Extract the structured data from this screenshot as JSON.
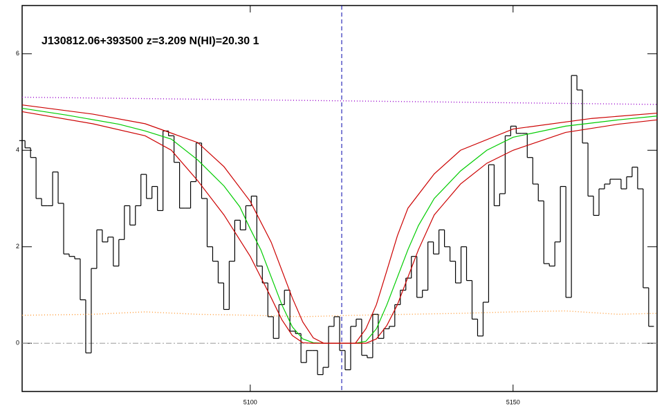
{
  "chart_data": {
    "type": "line",
    "title": "J130812.06+393500 z=3.209 N(HI)=20.30 1",
    "xlim": [
      5056.6,
      5177.4
    ],
    "ylim": [
      -1.0,
      7.0
    ],
    "xticks": [
      5100,
      5150
    ],
    "yticks": [
      0,
      2,
      4,
      6
    ],
    "hline": 0,
    "vline": 5117.4,
    "series": [
      {
        "style": "step",
        "color": "#000000",
        "x": [
          5056.6,
          5057.7,
          5058.7,
          5059.8,
          5060.8,
          5061.9,
          5062.9,
          5064.0,
          5065.0,
          5066.1,
          5067.1,
          5068.2,
          5069.2,
          5070.3,
          5071.3,
          5072.4,
          5073.4,
          5074.5,
          5075.5,
          5076.6,
          5077.6,
          5078.7,
          5079.7,
          5080.8,
          5081.8,
          5082.9,
          5083.9,
          5085.0,
          5086.0,
          5087.1,
          5088.1,
          5089.2,
          5090.2,
          5091.3,
          5092.3,
          5093.4,
          5094.4,
          5095.5,
          5096.5,
          5097.6,
          5098.6,
          5099.7,
          5100.7,
          5101.8,
          5102.8,
          5103.9,
          5104.9,
          5106.0,
          5107.0,
          5108.1,
          5109.1,
          5110.2,
          5111.2,
          5112.3,
          5113.3,
          5114.4,
          5115.4,
          5116.5,
          5117.5,
          5118.6,
          5119.6,
          5120.7,
          5121.7,
          5122.8,
          5123.8,
          5124.9,
          5125.9,
          5127.0,
          5128.0,
          5129.1,
          5130.1,
          5131.2,
          5132.2,
          5133.3,
          5134.3,
          5135.4,
          5136.4,
          5137.5,
          5138.5,
          5139.6,
          5140.6,
          5141.7,
          5142.7,
          5143.8,
          5144.8,
          5145.9,
          5146.9,
          5148.0,
          5149.0,
          5150.1,
          5151.1,
          5152.2,
          5153.2,
          5154.3,
          5155.3,
          5156.4,
          5157.4,
          5158.5,
          5159.5,
          5160.6,
          5161.6,
          5162.7,
          5163.7,
          5164.8,
          5165.8,
          5166.9,
          5167.9,
          5169.0,
          5170.0,
          5171.1,
          5172.1,
          5173.2,
          5174.2,
          5175.3,
          5176.3
        ],
        "values": [
          4.2,
          4.05,
          3.85,
          3.0,
          2.85,
          2.85,
          3.55,
          2.9,
          1.85,
          1.8,
          1.75,
          0.9,
          -0.2,
          1.55,
          2.35,
          2.1,
          2.2,
          1.6,
          2.15,
          2.85,
          2.45,
          2.85,
          3.5,
          3.0,
          3.25,
          2.75,
          4.4,
          4.3,
          3.75,
          2.8,
          2.8,
          3.35,
          4.15,
          3.0,
          2.0,
          1.7,
          1.25,
          0.7,
          1.7,
          2.55,
          2.35,
          2.85,
          3.05,
          1.6,
          1.25,
          0.55,
          0.1,
          0.8,
          1.1,
          0.25,
          0.2,
          -0.4,
          -0.15,
          -0.15,
          -0.65,
          -0.5,
          0.35,
          0.55,
          -0.15,
          -0.55,
          0.35,
          0.5,
          -0.25,
          -0.3,
          0.6,
          0.1,
          0.3,
          0.35,
          0.8,
          1.1,
          1.35,
          1.8,
          0.95,
          1.1,
          2.1,
          1.85,
          2.35,
          2.0,
          1.7,
          1.25,
          2.0,
          1.3,
          0.5,
          0.15,
          0.85,
          3.7,
          2.85,
          3.1,
          4.3,
          4.5,
          4.35,
          4.35,
          3.85,
          3.3,
          2.95,
          1.65,
          1.6,
          2.1,
          3.25,
          0.95,
          5.55,
          5.25,
          4.15,
          3.05,
          2.65,
          3.2,
          3.3,
          3.4,
          3.4,
          3.2,
          3.45,
          3.65,
          3.2,
          1.15,
          0.35
        ]
      },
      {
        "style": "dotted",
        "color": "#9900cc",
        "x": [
          5056.6,
          5177.4
        ],
        "values": [
          5.1,
          4.95
        ]
      },
      {
        "style": "dotted",
        "color": "#ff9933",
        "x": [
          5056.6,
          5070,
          5080,
          5090,
          5100,
          5110,
          5120,
          5130,
          5140,
          5150,
          5160,
          5170,
          5177.4
        ],
        "values": [
          0.58,
          0.6,
          0.65,
          0.6,
          0.58,
          0.55,
          0.58,
          0.6,
          0.62,
          0.65,
          0.67,
          0.6,
          0.62
        ]
      },
      {
        "style": "solid",
        "color": "#00cc00",
        "x": [
          5056.6,
          5065,
          5075,
          5080,
          5085,
          5090,
          5095,
          5098,
          5100,
          5102,
          5104,
          5106,
          5108,
          5110,
          5112,
          5114,
          5117,
          5120,
          5122,
          5124,
          5126,
          5128,
          5130,
          5132,
          5135,
          5140,
          5145,
          5150,
          5160,
          5170,
          5177.4
        ],
        "values": [
          4.87,
          4.73,
          4.54,
          4.4,
          4.23,
          3.8,
          3.26,
          2.83,
          2.37,
          1.94,
          1.37,
          0.8,
          0.34,
          0.09,
          0.01,
          0,
          0,
          0,
          0.04,
          0.3,
          0.8,
          1.37,
          1.94,
          2.44,
          3.0,
          3.57,
          4.0,
          4.27,
          4.5,
          4.63,
          4.71
        ]
      },
      {
        "style": "solid",
        "color": "#cc0000",
        "x": [
          5056.6,
          5070,
          5080,
          5090,
          5095,
          5100,
          5104,
          5108,
          5110,
          5112,
          5114,
          5120,
          5122,
          5124,
          5126,
          5128,
          5130,
          5135,
          5140,
          5150,
          5165,
          5177.4
        ],
        "values": [
          4.94,
          4.75,
          4.55,
          4.16,
          3.66,
          2.94,
          2.09,
          0.94,
          0.44,
          0.11,
          0,
          0,
          0.3,
          0.8,
          1.51,
          2.23,
          2.8,
          3.51,
          4.0,
          4.44,
          4.66,
          4.77
        ]
      },
      {
        "style": "solid",
        "color": "#cc0000",
        "x": [
          5056.6,
          5070,
          5080,
          5085,
          5090,
          5095,
          5100,
          5104,
          5106,
          5108,
          5110,
          5112,
          5122,
          5124,
          5126,
          5128,
          5130,
          5132,
          5135,
          5140,
          5145,
          5150,
          5160,
          5170,
          5177.4
        ],
        "values": [
          4.8,
          4.55,
          4.3,
          4.0,
          3.37,
          2.66,
          1.8,
          0.94,
          0.49,
          0.16,
          0.01,
          0,
          0,
          0.09,
          0.37,
          0.8,
          1.37,
          1.94,
          2.66,
          3.3,
          3.73,
          4.0,
          4.37,
          4.54,
          4.63
        ]
      }
    ]
  }
}
